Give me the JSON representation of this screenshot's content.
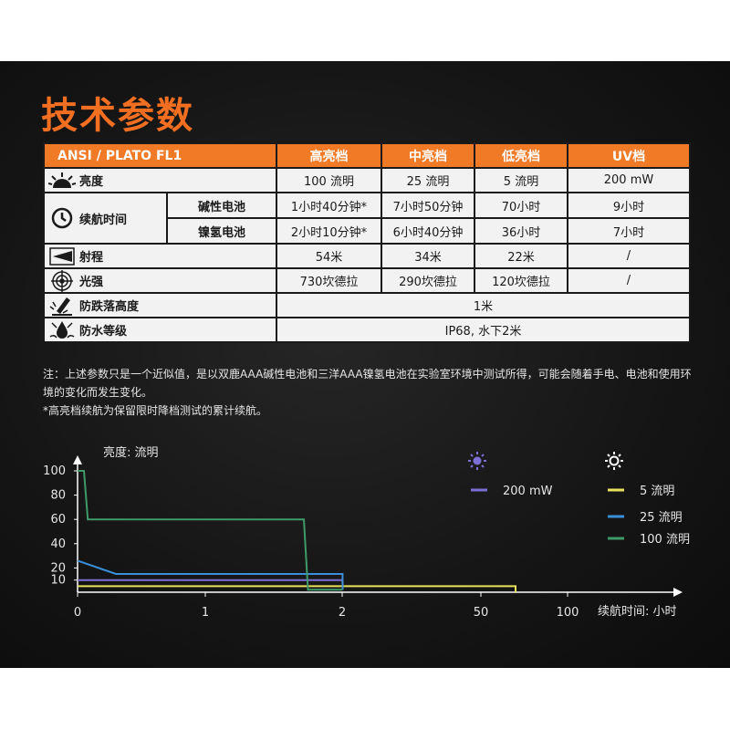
{
  "title": "技术参数",
  "table": {
    "header": [
      "ANSI / PLATO FL1",
      "高亮档",
      "中亮档",
      "低亮档",
      "UV档"
    ],
    "rows": {
      "brightness": {
        "label": "亮度",
        "icon": "sun-burst-icon",
        "values": [
          "100 流明",
          "25 流明",
          "5 流明",
          "200 mW"
        ]
      },
      "runtime": {
        "label": "续航时间",
        "icon": "clock-icon",
        "alkaline": {
          "label": "碱性电池",
          "values": [
            "1小时40分钟*",
            "7小时50分钟",
            "70小时",
            "9小时"
          ]
        },
        "nimh": {
          "label": "镍氢电池",
          "values": [
            "2小时10分钟*",
            "6小时40分钟",
            "36小时",
            "7小时"
          ]
        }
      },
      "throw": {
        "label": "射程",
        "icon": "beam-distance-icon",
        "values": [
          "54米",
          "34米",
          "22米",
          "/"
        ]
      },
      "intensity": {
        "label": "光强",
        "icon": "target-icon",
        "values": [
          "730坎德拉",
          "290坎德拉",
          "120坎德拉",
          "/"
        ]
      },
      "impact": {
        "label": "防跌落高度",
        "icon": "impact-drop-icon",
        "value": "1米"
      },
      "waterproof": {
        "label": "防水等级",
        "icon": "water-drop-icon",
        "value": "IP68, 水下2米"
      }
    }
  },
  "notes": {
    "line1": "注：上述参数只是一个近似值，是以双鹿AAA碱性电池和三洋AAA镍氢电池在实验室环境中测试所得，可能会随着手电、电池和使用环境的变化而发生变化。",
    "line2": "*高亮档续航为保留限时降档测试的累计续航。"
  },
  "chart_data": {
    "type": "line",
    "ylabel": "亮度: 流明",
    "xlabel": "续航时间: 小时",
    "x_ticks": [
      "0",
      "1",
      "2",
      "50",
      "100"
    ],
    "y_ticks": [
      100,
      80,
      60,
      40,
      20,
      10
    ],
    "x_scale": "piecewise: linear 0–2 h, then compressed 2–100 h",
    "legend": {
      "uv_icon": "uv-light-icon",
      "white_icon": "white-light-icon",
      "entries": [
        {
          "label": "200 mW",
          "color": "#7c6fd6"
        },
        {
          "label": "5 流明",
          "color": "#e8e25a"
        },
        {
          "label": "25 流明",
          "color": "#3a8fd8"
        },
        {
          "label": "100 流明",
          "color": "#3f9a6a"
        }
      ]
    },
    "series": [
      {
        "name": "100 流明",
        "color": "#3f9a6a",
        "points": [
          [
            0,
            100
          ],
          [
            0.05,
            100
          ],
          [
            0.08,
            60
          ],
          [
            1.72,
            60
          ],
          [
            1.75,
            2
          ],
          [
            2.1,
            2
          ]
        ]
      },
      {
        "name": "25 流明",
        "color": "#3a8fd8",
        "points": [
          [
            0,
            26
          ],
          [
            0.3,
            15
          ],
          [
            2.12,
            15
          ],
          [
            2.14,
            9
          ],
          [
            2.16,
            2
          ]
        ]
      },
      {
        "name": "200 mW",
        "color": "#7c6fd6",
        "points": [
          [
            0,
            10
          ],
          [
            2.12,
            10
          ],
          [
            2.17,
            2
          ]
        ]
      },
      {
        "name": "5 流明",
        "color": "#e8e25a",
        "points": [
          [
            0,
            5
          ],
          [
            70,
            5
          ],
          [
            70,
            0
          ]
        ]
      }
    ],
    "ylim": [
      0,
      100
    ]
  }
}
